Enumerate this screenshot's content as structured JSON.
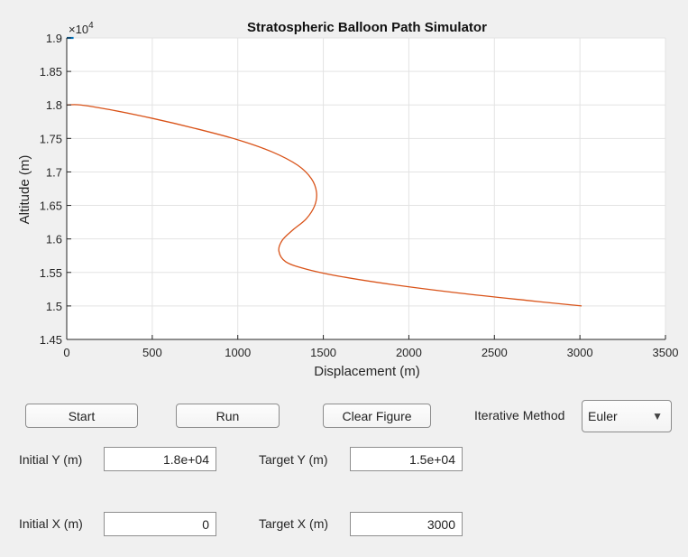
{
  "chart_data": {
    "type": "line",
    "title": "Stratospheric Balloon Path Simulator",
    "xlabel": "Displacement (m)",
    "ylabel": "Altitude (m)",
    "exponent_label": "×10",
    "exponent_power": "4",
    "xlim": [
      0,
      3500
    ],
    "ylim": [
      14500,
      19000
    ],
    "xticks": [
      0,
      500,
      1000,
      1500,
      2000,
      2500,
      3000,
      3500
    ],
    "xtick_labels": [
      "0",
      "500",
      "1000",
      "1500",
      "2000",
      "2500",
      "3000",
      "3500"
    ],
    "yticks": [
      14500,
      15000,
      15500,
      16000,
      16500,
      17000,
      17500,
      18000,
      18500,
      19000
    ],
    "ytick_labels": [
      "1.45",
      "1.5",
      "1.55",
      "1.6",
      "1.65",
      "1.7",
      "1.75",
      "1.8",
      "1.85",
      "1.9"
    ],
    "grid": true,
    "series": [
      {
        "color": "#d95319",
        "x": [
          0,
          80,
          250,
          500,
          750,
          1000,
          1200,
          1350,
          1430,
          1460,
          1450,
          1400,
          1320,
          1260,
          1240,
          1280,
          1400,
          1600,
          1900,
          2300,
          2700,
          3010
        ],
        "y": [
          18000,
          18000,
          17930,
          17800,
          17650,
          17480,
          17300,
          17100,
          16900,
          16700,
          16500,
          16300,
          16130,
          15980,
          15820,
          15660,
          15550,
          15440,
          15320,
          15190,
          15080,
          15000
        ]
      },
      {
        "color": "#0072bd",
        "x": [
          0,
          40
        ],
        "y": [
          19000,
          19000
        ]
      }
    ]
  },
  "controls": {
    "start_label": "Start",
    "run_label": "Run",
    "clear_label": "Clear Figure",
    "method_label": "Iterative Method",
    "method_value": "Euler",
    "initial_y_label": "Initial Y (m)",
    "initial_y_value": "1.8e+04",
    "target_y_label": "Target Y (m)",
    "target_y_value": "1.5e+04",
    "initial_x_label": "Initial X (m)",
    "initial_x_value": "0",
    "target_x_label": "Target X (m)",
    "target_x_value": "3000"
  }
}
